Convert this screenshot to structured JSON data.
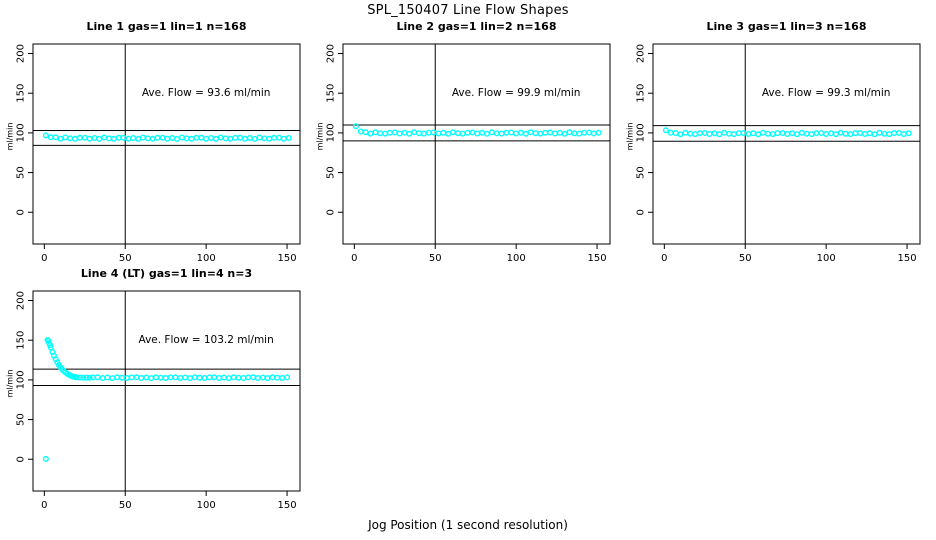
{
  "page": {
    "title": "SPL_150407  Line Flow Shapes",
    "xlabel": "Jog Position (1 second resolution)"
  },
  "colors": {
    "data": "#00ffff",
    "axis": "#000000",
    "background": "#ffffff"
  },
  "chart_data": [
    {
      "type": "scatter",
      "title": "Line 1 gas=1 lin=1 n=168",
      "ylabel": "ml/min",
      "annotation": "Ave. Flow =  93.6  ml/min",
      "ave_flow": 93.6,
      "n": 168,
      "x_ticks": [
        0,
        50,
        100,
        150
      ],
      "y_ticks": [
        0,
        50,
        100,
        150,
        200
      ],
      "xlim": [
        -7,
        158
      ],
      "ylim": [
        -40,
        212
      ],
      "vline": 50,
      "hlines": [
        84.2,
        103.0
      ],
      "annotation_pos": [
        100,
        150
      ],
      "points": [
        [
          1,
          96.8
        ],
        [
          4,
          94.5
        ],
        [
          7,
          94.4
        ],
        [
          10,
          92.7
        ],
        [
          13,
          94.3
        ],
        [
          16,
          93.1
        ],
        [
          19,
          92.6
        ],
        [
          22,
          93.8
        ],
        [
          25,
          94.0
        ],
        [
          28,
          92.7
        ],
        [
          31,
          93.6
        ],
        [
          34,
          92.4
        ],
        [
          37,
          94.2
        ],
        [
          40,
          93.1
        ],
        [
          43,
          92.6
        ],
        [
          46,
          93.8
        ],
        [
          49,
          94.0
        ],
        [
          52,
          92.7
        ],
        [
          55,
          93.6
        ],
        [
          58,
          92.4
        ],
        [
          61,
          94.2
        ],
        [
          64,
          93.1
        ],
        [
          67,
          92.6
        ],
        [
          70,
          93.8
        ],
        [
          73,
          94.0
        ],
        [
          76,
          92.7
        ],
        [
          79,
          93.6
        ],
        [
          82,
          92.4
        ],
        [
          85,
          94.2
        ],
        [
          88,
          93.1
        ],
        [
          91,
          92.6
        ],
        [
          94,
          93.8
        ],
        [
          97,
          94.0
        ],
        [
          100,
          92.7
        ],
        [
          103,
          93.6
        ],
        [
          106,
          92.4
        ],
        [
          109,
          94.2
        ],
        [
          112,
          93.1
        ],
        [
          115,
          92.6
        ],
        [
          118,
          93.8
        ],
        [
          121,
          94.0
        ],
        [
          124,
          92.7
        ],
        [
          127,
          93.6
        ],
        [
          130,
          92.4
        ],
        [
          133,
          94.2
        ],
        [
          136,
          93.1
        ],
        [
          139,
          92.6
        ],
        [
          142,
          93.8
        ],
        [
          145,
          94.0
        ],
        [
          148,
          92.7
        ],
        [
          151,
          93.6
        ]
      ]
    },
    {
      "type": "scatter",
      "title": "Line 2 gas=1 lin=2 n=168",
      "ylabel": "ml/min",
      "annotation": "Ave. Flow =  99.9  ml/min",
      "ave_flow": 99.9,
      "n": 168,
      "x_ticks": [
        0,
        50,
        100,
        150
      ],
      "y_ticks": [
        0,
        50,
        100,
        150,
        200
      ],
      "xlim": [
        -7,
        158
      ],
      "ylim": [
        -40,
        212
      ],
      "vline": 50,
      "hlines": [
        89.9,
        109.9
      ],
      "annotation_pos": [
        100,
        150
      ],
      "points": [
        [
          1,
          108.3
        ],
        [
          4,
          101.8
        ],
        [
          7,
          100.9
        ],
        [
          10,
          99.1
        ],
        [
          13,
          100.7
        ],
        [
          16,
          99.6
        ],
        [
          19,
          99.1
        ],
        [
          22,
          100.3
        ],
        [
          25,
          100.5
        ],
        [
          28,
          99.2
        ],
        [
          31,
          100.1
        ],
        [
          34,
          98.9
        ],
        [
          37,
          100.7
        ],
        [
          40,
          99.6
        ],
        [
          43,
          99.1
        ],
        [
          46,
          100.3
        ],
        [
          49,
          100.5
        ],
        [
          52,
          99.2
        ],
        [
          55,
          100.1
        ],
        [
          58,
          98.9
        ],
        [
          61,
          100.7
        ],
        [
          64,
          99.6
        ],
        [
          67,
          99.1
        ],
        [
          70,
          100.3
        ],
        [
          73,
          100.5
        ],
        [
          76,
          99.2
        ],
        [
          79,
          100.1
        ],
        [
          82,
          98.9
        ],
        [
          85,
          100.7
        ],
        [
          88,
          99.6
        ],
        [
          91,
          99.1
        ],
        [
          94,
          100.3
        ],
        [
          97,
          100.5
        ],
        [
          100,
          99.2
        ],
        [
          103,
          100.1
        ],
        [
          106,
          98.9
        ],
        [
          109,
          100.7
        ],
        [
          112,
          99.6
        ],
        [
          115,
          99.1
        ],
        [
          118,
          100.3
        ],
        [
          121,
          100.5
        ],
        [
          124,
          99.2
        ],
        [
          127,
          100.1
        ],
        [
          130,
          98.9
        ],
        [
          133,
          100.7
        ],
        [
          136,
          99.6
        ],
        [
          139,
          99.1
        ],
        [
          142,
          100.3
        ],
        [
          145,
          100.5
        ],
        [
          148,
          99.2
        ],
        [
          151,
          100.1
        ]
      ]
    },
    {
      "type": "scatter",
      "title": "Line 3 gas=1 lin=3 n=168",
      "ylabel": "ml/min",
      "annotation": "Ave. Flow =  99.3  ml/min",
      "ave_flow": 99.3,
      "n": 168,
      "x_ticks": [
        0,
        50,
        100,
        150
      ],
      "y_ticks": [
        0,
        50,
        100,
        150,
        200
      ],
      "xlim": [
        -7,
        158
      ],
      "ylim": [
        -40,
        212
      ],
      "vline": 50,
      "hlines": [
        89.4,
        109.2
      ],
      "annotation_pos": [
        100,
        150
      ],
      "points": [
        [
          1,
          103.2
        ],
        [
          4,
          100.1
        ],
        [
          7,
          99.8
        ],
        [
          10,
          98.3
        ],
        [
          13,
          100.1
        ],
        [
          16,
          99.0
        ],
        [
          19,
          98.5
        ],
        [
          22,
          99.7
        ],
        [
          25,
          99.9
        ],
        [
          28,
          98.6
        ],
        [
          31,
          99.5
        ],
        [
          34,
          98.3
        ],
        [
          37,
          100.1
        ],
        [
          40,
          99.0
        ],
        [
          43,
          98.5
        ],
        [
          46,
          99.7
        ],
        [
          49,
          99.9
        ],
        [
          52,
          98.6
        ],
        [
          55,
          99.5
        ],
        [
          58,
          98.3
        ],
        [
          61,
          100.1
        ],
        [
          64,
          99.0
        ],
        [
          67,
          98.5
        ],
        [
          70,
          99.7
        ],
        [
          73,
          99.9
        ],
        [
          76,
          98.6
        ],
        [
          79,
          99.5
        ],
        [
          82,
          98.3
        ],
        [
          85,
          100.1
        ],
        [
          88,
          99.0
        ],
        [
          91,
          98.5
        ],
        [
          94,
          99.7
        ],
        [
          97,
          99.9
        ],
        [
          100,
          98.6
        ],
        [
          103,
          99.5
        ],
        [
          106,
          98.3
        ],
        [
          109,
          100.1
        ],
        [
          112,
          99.0
        ],
        [
          115,
          98.5
        ],
        [
          118,
          99.7
        ],
        [
          121,
          99.9
        ],
        [
          124,
          98.6
        ],
        [
          127,
          99.5
        ],
        [
          130,
          98.3
        ],
        [
          133,
          100.1
        ],
        [
          136,
          99.0
        ],
        [
          139,
          98.5
        ],
        [
          142,
          99.7
        ],
        [
          145,
          99.9
        ],
        [
          148,
          98.6
        ],
        [
          151,
          99.5
        ]
      ]
    },
    {
      "type": "scatter",
      "title": "Line 4 (LT) gas=1 lin=4 n=3",
      "ylabel": "ml/min",
      "annotation": "Ave. Flow =  103.2  ml/min",
      "ave_flow": 103.2,
      "n": 3,
      "x_ticks": [
        0,
        50,
        100,
        150
      ],
      "y_ticks": [
        0,
        50,
        100,
        150,
        200
      ],
      "xlim": [
        -7,
        158
      ],
      "ylim": [
        -40,
        212
      ],
      "vline": 50,
      "hlines": [
        92.9,
        113.5
      ],
      "annotation_pos": [
        100,
        150
      ],
      "points": [
        [
          1,
          0.5
        ],
        [
          2,
          150.2
        ],
        [
          2.5,
          149.0
        ],
        [
          3,
          146.5
        ],
        [
          3.5,
          143.9
        ],
        [
          4,
          140.8
        ],
        [
          5,
          135.2
        ],
        [
          6,
          130.3
        ],
        [
          7,
          126.0
        ],
        [
          8,
          122.2
        ],
        [
          9,
          118.9
        ],
        [
          10,
          116.0
        ],
        [
          11,
          113.5
        ],
        [
          12,
          111.4
        ],
        [
          13,
          109.6
        ],
        [
          14,
          108.0
        ],
        [
          15,
          106.7
        ],
        [
          16,
          105.6
        ],
        [
          17,
          104.7
        ],
        [
          18,
          104.0
        ],
        [
          19,
          103.6
        ],
        [
          20,
          103.3
        ],
        [
          22,
          103.0
        ],
        [
          24,
          102.8
        ],
        [
          26,
          102.9
        ],
        [
          28,
          102.7
        ],
        [
          30,
          103.1
        ],
        [
          33,
          103.2
        ],
        [
          36,
          102.4
        ],
        [
          39,
          103.0
        ],
        [
          42,
          102.3
        ],
        [
          45,
          103.3
        ],
        [
          48,
          102.7
        ],
        [
          51,
          102.4
        ],
        [
          54,
          103.1
        ],
        [
          57,
          103.2
        ],
        [
          60,
          102.4
        ],
        [
          63,
          103.0
        ],
        [
          66,
          102.3
        ],
        [
          69,
          103.3
        ],
        [
          72,
          102.7
        ],
        [
          75,
          102.4
        ],
        [
          78,
          103.1
        ],
        [
          81,
          103.2
        ],
        [
          84,
          102.4
        ],
        [
          87,
          103.0
        ],
        [
          90,
          102.3
        ],
        [
          93,
          103.3
        ],
        [
          96,
          102.7
        ],
        [
          99,
          102.4
        ],
        [
          102,
          103.1
        ],
        [
          105,
          103.2
        ],
        [
          108,
          102.4
        ],
        [
          111,
          103.0
        ],
        [
          114,
          102.3
        ],
        [
          117,
          103.3
        ],
        [
          120,
          102.7
        ],
        [
          123,
          102.4
        ],
        [
          126,
          103.1
        ],
        [
          129,
          103.2
        ],
        [
          132,
          102.4
        ],
        [
          135,
          103.0
        ],
        [
          138,
          102.3
        ],
        [
          141,
          103.3
        ],
        [
          144,
          102.7
        ],
        [
          147,
          102.4
        ],
        [
          150,
          103.1
        ]
      ]
    }
  ]
}
